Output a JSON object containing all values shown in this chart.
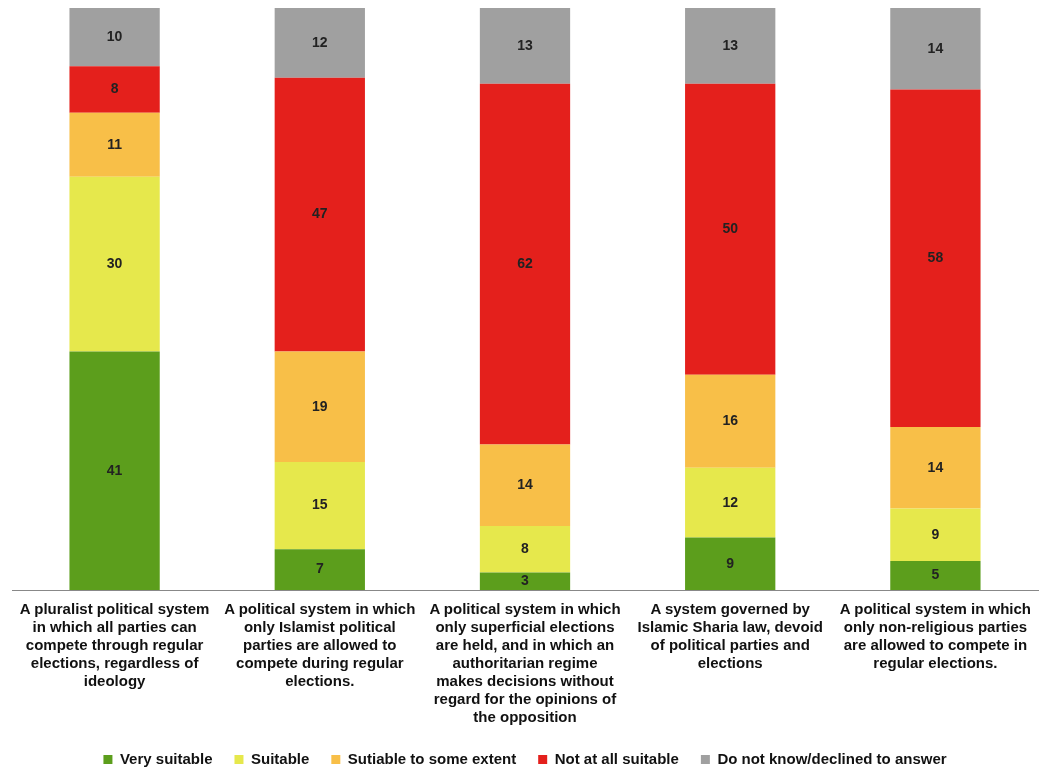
{
  "chart_data": {
    "type": "bar",
    "stacked": true,
    "data_labels": true,
    "grid": false,
    "legend": "bottom",
    "categories": [
      "A pluralist political system in which all parties can compete through regular elections, regardless of ideology",
      "A political system in which only Islamist political parties are allowed to compete during regular elections.",
      "A political system in which only superficial elections are held, and in which an authoritarian regime makes decisions without regard for the opinions of the opposition",
      "A system governed by Islamic Sharia law, devoid of political parties and elections",
      "A political system in which only non-religious parties are allowed to compete in regular elections."
    ],
    "series": [
      {
        "name": "Very suitable",
        "color": "#5c9e1c",
        "values": [
          41,
          7,
          3,
          9,
          5
        ]
      },
      {
        "name": "Suitable",
        "color": "#e6e84c",
        "values": [
          30,
          15,
          8,
          12,
          9
        ]
      },
      {
        "name": "Sutiable to some extent",
        "color": "#f8bf48",
        "values": [
          11,
          19,
          14,
          16,
          14
        ]
      },
      {
        "name": "Not at all suitable",
        "color": "#e4201c",
        "values": [
          8,
          47,
          62,
          50,
          58
        ]
      },
      {
        "name": "Do not know/declined to answer",
        "color": "#a0a0a0",
        "values": [
          10,
          12,
          13,
          13,
          14
        ]
      }
    ]
  }
}
